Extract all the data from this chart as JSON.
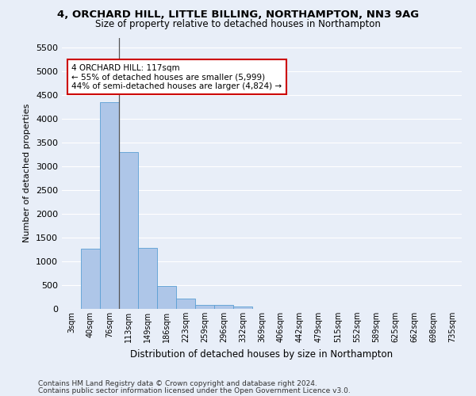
{
  "title": "4, ORCHARD HILL, LITTLE BILLING, NORTHAMPTON, NN3 9AG",
  "subtitle": "Size of property relative to detached houses in Northampton",
  "xlabel": "Distribution of detached houses by size in Northampton",
  "ylabel": "Number of detached properties",
  "bar_color": "#aec6e8",
  "bar_edge_color": "#5a9fd4",
  "background_color": "#e8eef8",
  "grid_color": "#ffffff",
  "categories": [
    "3sqm",
    "40sqm",
    "76sqm",
    "113sqm",
    "149sqm",
    "186sqm",
    "223sqm",
    "259sqm",
    "296sqm",
    "332sqm",
    "369sqm",
    "406sqm",
    "442sqm",
    "479sqm",
    "515sqm",
    "552sqm",
    "589sqm",
    "625sqm",
    "662sqm",
    "698sqm",
    "735sqm"
  ],
  "values": [
    0,
    1270,
    4340,
    3300,
    1280,
    490,
    220,
    90,
    75,
    55,
    0,
    0,
    0,
    0,
    0,
    0,
    0,
    0,
    0,
    0,
    0
  ],
  "ylim": [
    0,
    5700
  ],
  "yticks": [
    0,
    500,
    1000,
    1500,
    2000,
    2500,
    3000,
    3500,
    4000,
    4500,
    5000,
    5500
  ],
  "annotation_text": "4 ORCHARD HILL: 117sqm\n← 55% of detached houses are smaller (5,999)\n44% of semi-detached houses are larger (4,824) →",
  "annotation_box_color": "#ffffff",
  "annotation_box_edge_color": "#cc0000",
  "property_line_x": 2.5,
  "footer1": "Contains HM Land Registry data © Crown copyright and database right 2024.",
  "footer2": "Contains public sector information licensed under the Open Government Licence v3.0."
}
